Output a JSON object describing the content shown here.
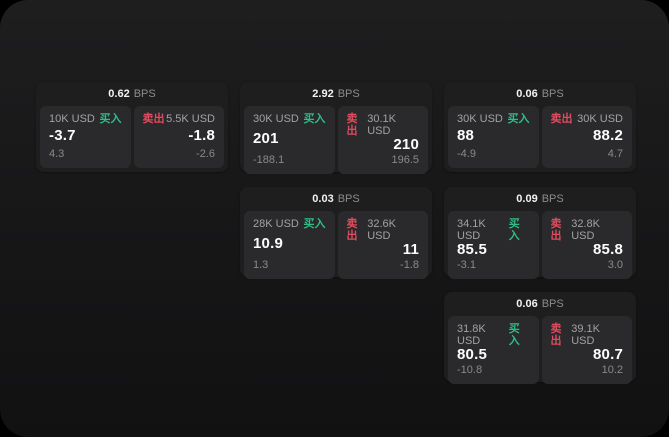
{
  "labels": {
    "bps_unit": "BPS",
    "buy": "买入",
    "sell": "卖出"
  },
  "colors": {
    "buy_green": "#2ebd85",
    "sell_red": "#e04b5e",
    "card_bg": "#1e1e1f",
    "panel_bg": "#2a2a2c",
    "text_primary": "#fdfdfd",
    "text_secondary": "#a2a2a4",
    "text_muted": "#8a8a8c"
  },
  "cards": [
    {
      "bps": "0.62",
      "buy": {
        "size": "10K USD",
        "value": "-3.7",
        "change": "4.3"
      },
      "sell": {
        "size": "5.5K USD",
        "value": "-1.8",
        "change": "-2.6"
      }
    },
    {
      "bps": "2.92",
      "buy": {
        "size": "30K USD",
        "value": "201",
        "change": "-188.1"
      },
      "sell": {
        "size": "30.1K USD",
        "value": "210",
        "change": "196.5"
      }
    },
    {
      "bps": "0.06",
      "buy": {
        "size": "30K USD",
        "value": "88",
        "change": "-4.9"
      },
      "sell": {
        "size": "30K USD",
        "value": "88.2",
        "change": "4.7"
      }
    },
    {
      "bps": "0.03",
      "buy": {
        "size": "28K USD",
        "value": "10.9",
        "change": "1.3"
      },
      "sell": {
        "size": "32.6K USD",
        "value": "11",
        "change": "-1.8"
      }
    },
    {
      "bps": "0.09",
      "buy": {
        "size": "34.1K USD",
        "value": "85.5",
        "change": "-3.1"
      },
      "sell": {
        "size": "32.8K USD",
        "value": "85.8",
        "change": "3.0"
      }
    },
    {
      "bps": "0.06",
      "buy": {
        "size": "31.8K USD",
        "value": "80.5",
        "change": "-10.8"
      },
      "sell": {
        "size": "39.1K USD",
        "value": "80.7",
        "change": "10.2"
      }
    }
  ]
}
